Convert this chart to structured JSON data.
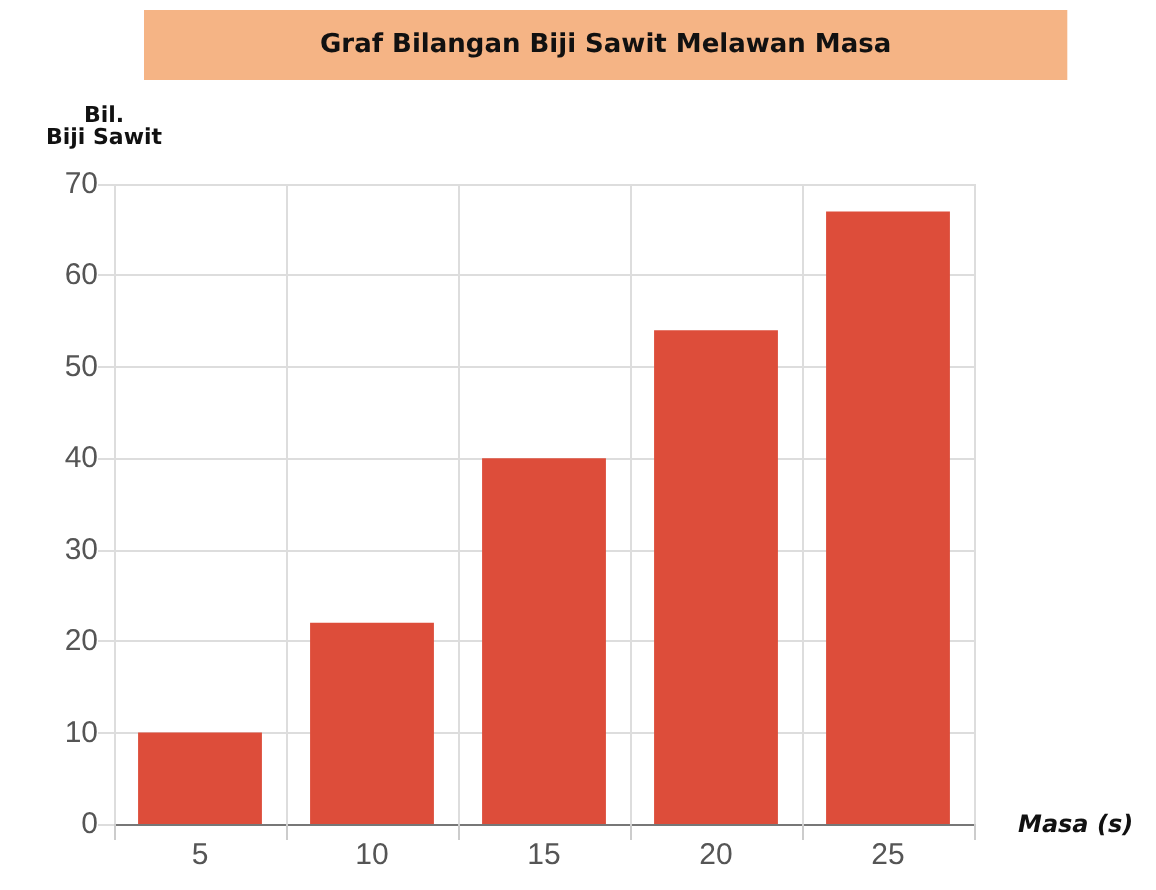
{
  "chart_data": {
    "type": "bar",
    "title": "Graf Bilangan Biji Sawit Melawan Masa",
    "xlabel": "Masa (s)",
    "ylabel": "Bil.\nBiji Sawit",
    "categories": [
      "5",
      "10",
      "15",
      "20",
      "25"
    ],
    "values": [
      10,
      22,
      40,
      54,
      67
    ],
    "color": "#dd4d3a",
    "ylim": [
      0,
      70
    ],
    "yticks": [
      0,
      10,
      20,
      30,
      40,
      50,
      60,
      70
    ],
    "grid": true
  }
}
